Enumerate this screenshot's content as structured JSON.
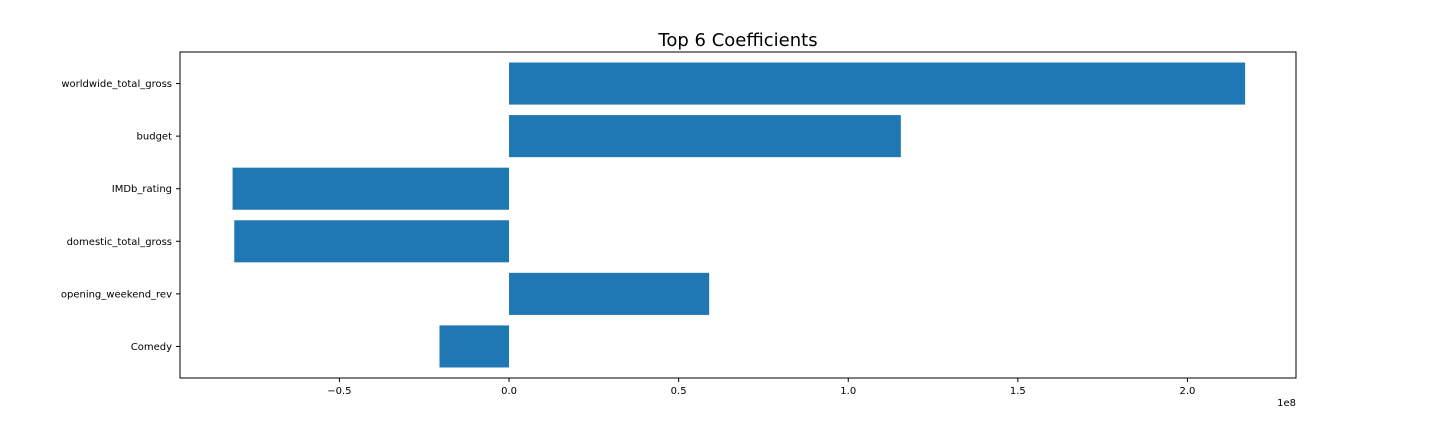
{
  "chart_data": {
    "type": "bar",
    "orientation": "horizontal",
    "title": "Top 6 Coefficients",
    "xlabel": "",
    "ylabel": "",
    "categories": [
      "worldwide_total_gross",
      "budget",
      "IMDb_rating",
      "domestic_total_gross",
      "opening_weekend_rev",
      "Comedy"
    ],
    "values": [
      217000000,
      115500000,
      -81500000,
      -81000000,
      59000000,
      -20500000
    ],
    "xlim": [
      -97000000,
      232000000
    ],
    "x_ticks": [
      -50000000,
      0,
      50000000,
      100000000,
      150000000,
      200000000
    ],
    "x_tick_labels": [
      "−0.5",
      "0.0",
      "0.5",
      "1.0",
      "1.5",
      "2.0"
    ],
    "x_offset_label": "1e8",
    "bar_color": "#1f77b4",
    "grid": false,
    "legend": "none"
  }
}
